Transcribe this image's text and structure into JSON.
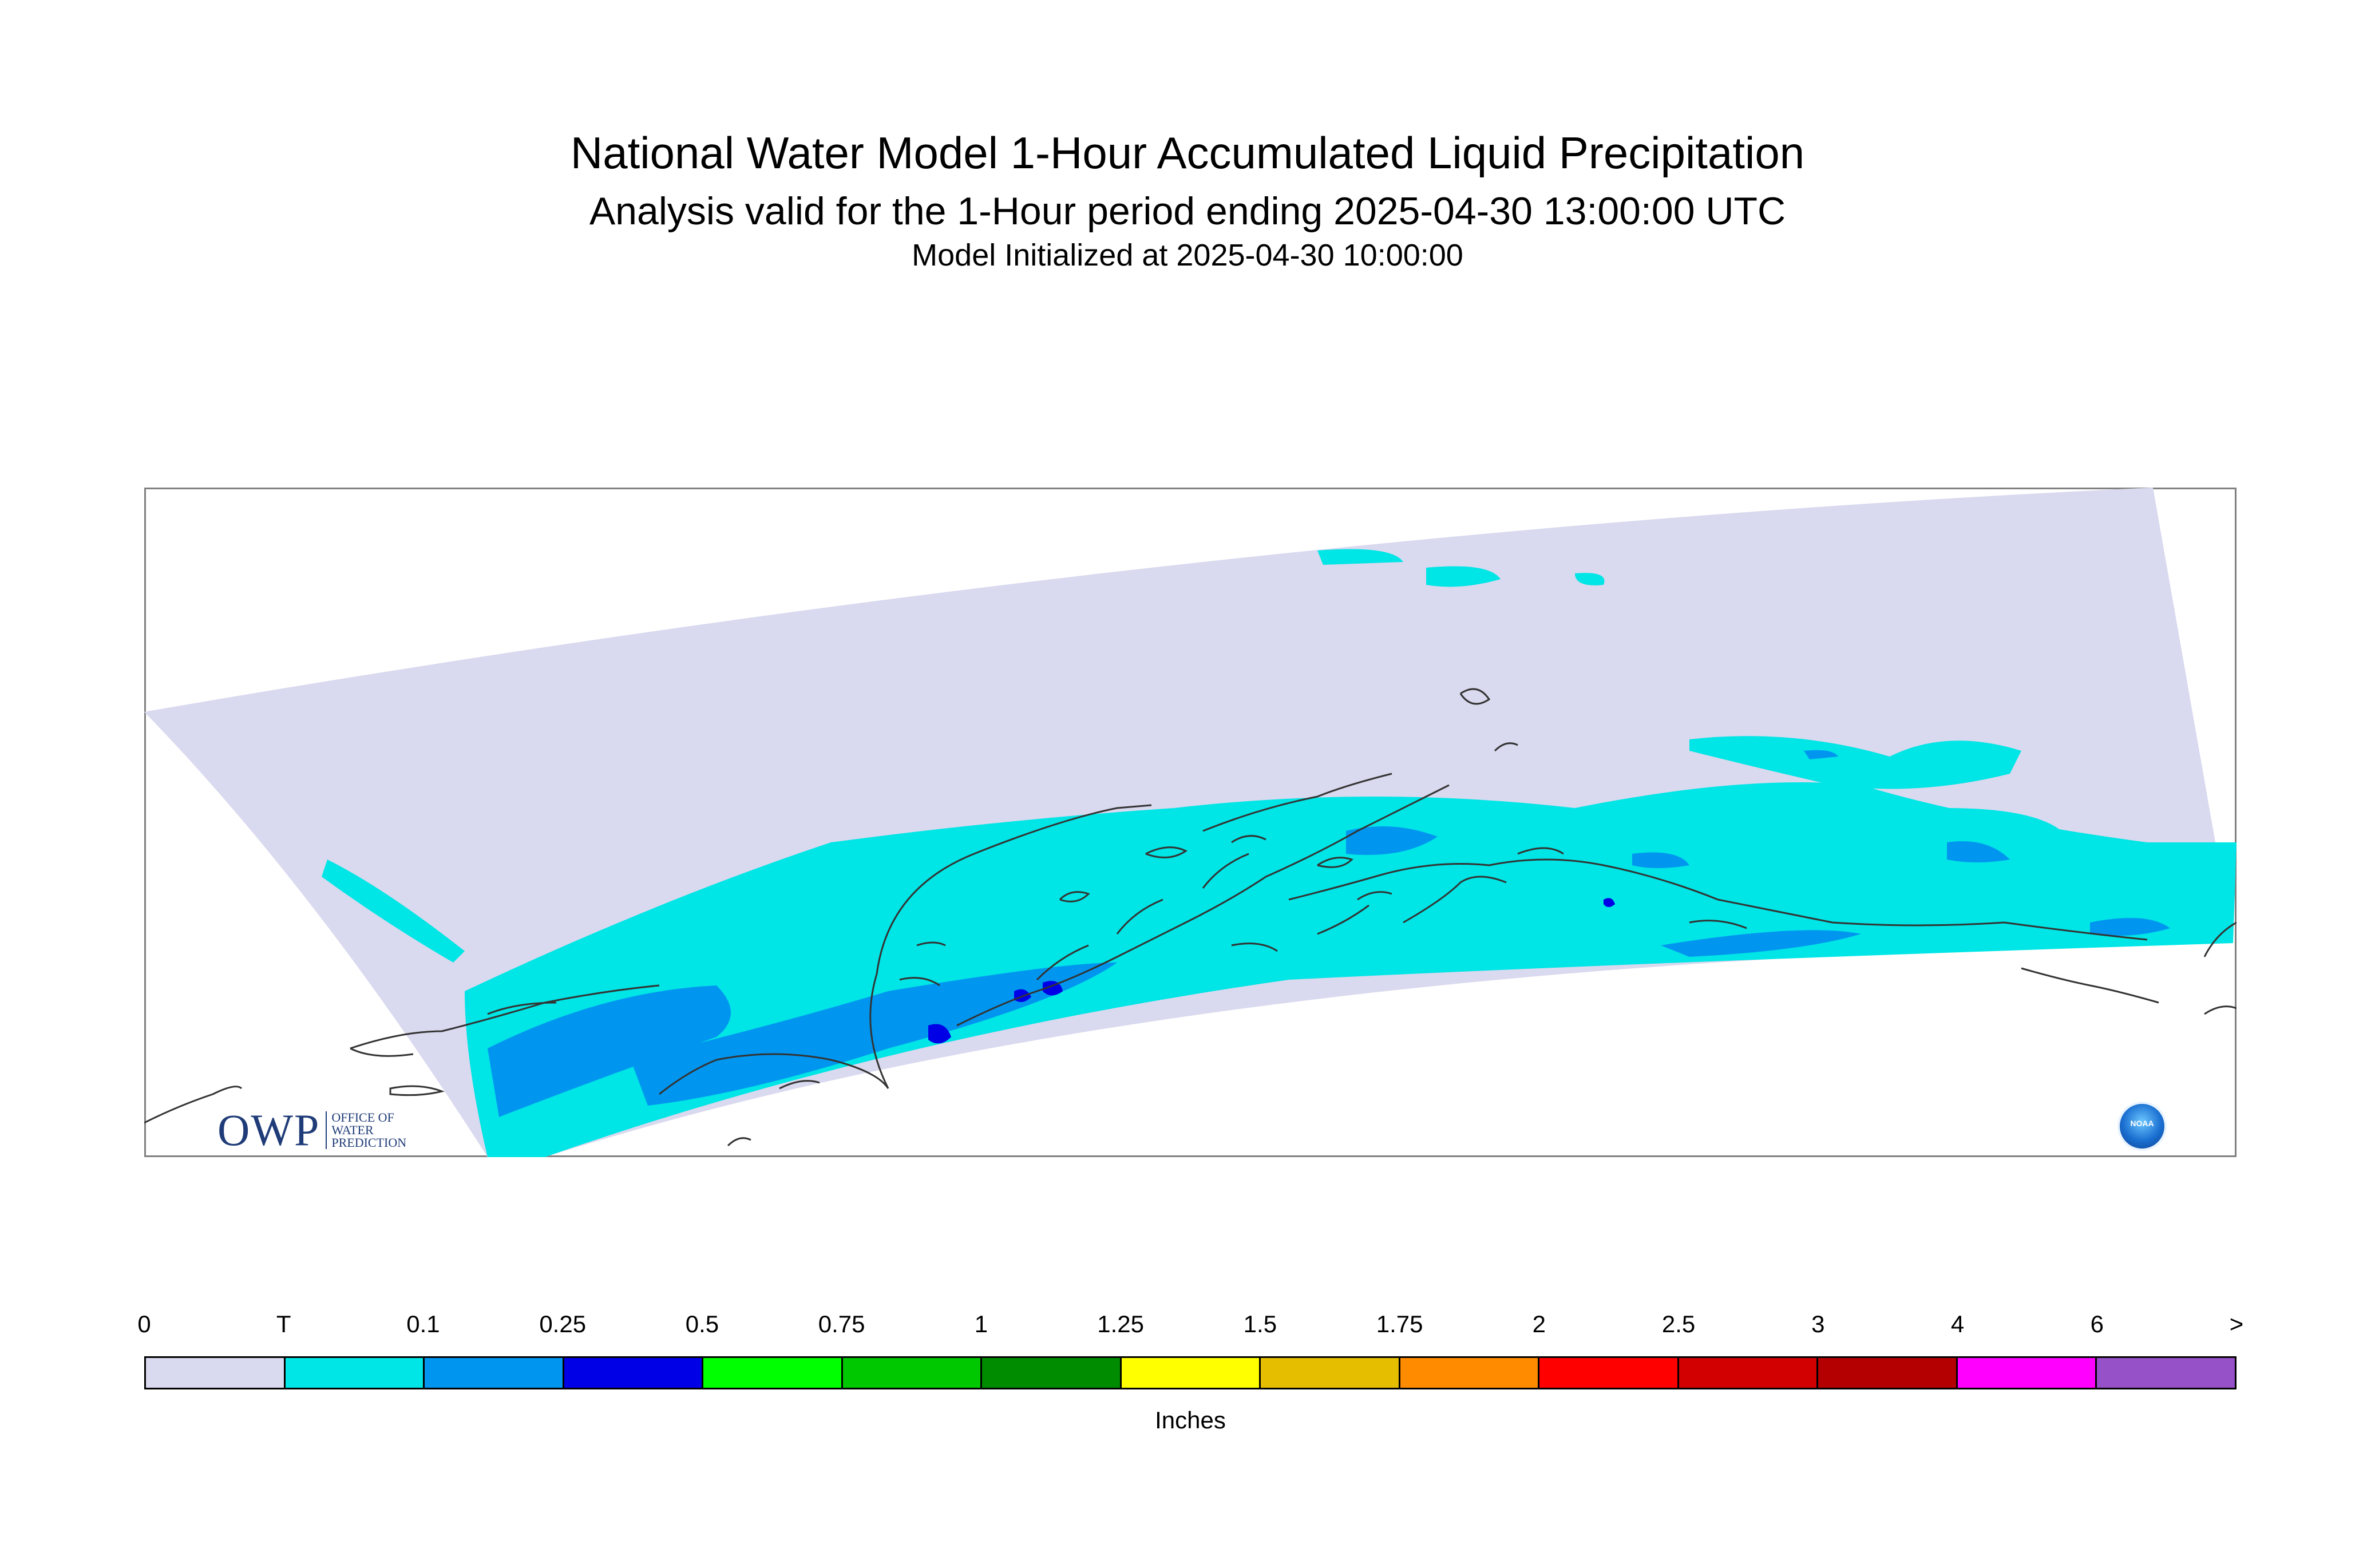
{
  "header": {
    "title": "National Water Model 1-Hour Accumulated Liquid Precipitation",
    "subtitle": "Analysis valid for the 1-Hour period ending 2025-04-30 13:00:00 UTC",
    "init_line": "Model Initialized at 2025-04-30 10:00:00"
  },
  "map": {
    "region_fill_color": "#d9d9ef",
    "border_color": "#808080",
    "coastline_color": "#333333",
    "precip_colors": {
      "trace": "#00e5e5",
      "light": "#0096f0",
      "moderate": "#0000e6"
    }
  },
  "logos": {
    "owp_mark": "OWP",
    "owp_lines": [
      "OFFICE OF",
      "WATER",
      "PREDICTION"
    ],
    "noaa_text": "NOAA"
  },
  "legend": {
    "units": "Inches",
    "ticks": [
      "0",
      "T",
      "0.1",
      "0.25",
      "0.5",
      "0.75",
      "1",
      "1.25",
      "1.5",
      "1.75",
      "2",
      "2.5",
      "3",
      "4",
      "6",
      ">"
    ],
    "colors": [
      "#d9d9ef",
      "#00e5e5",
      "#0096f0",
      "#0000e6",
      "#00ff00",
      "#00c800",
      "#008c00",
      "#ffff00",
      "#e6be00",
      "#ff8c00",
      "#ff0000",
      "#d20000",
      "#b40000",
      "#ff00ff",
      "#9650c8"
    ]
  }
}
